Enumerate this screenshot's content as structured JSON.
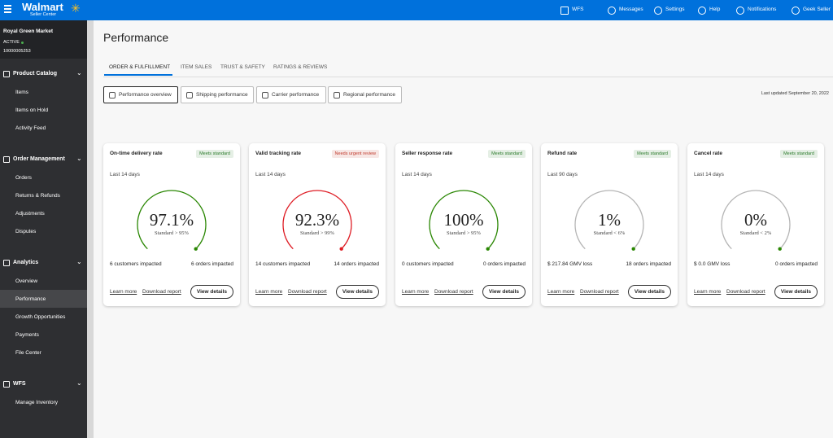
{
  "topbar": {
    "brand": "Walmart",
    "sub": "Seller Center",
    "items": [
      "WFS",
      "Messages",
      "Settings",
      "Help",
      "Notifications",
      "Geek Seller"
    ]
  },
  "sidebar": {
    "store": "Royal Green Market",
    "status": "ACTIVE",
    "id": "10000005253",
    "sections": [
      {
        "title": "Product Catalog",
        "items": [
          "Items",
          "Items on Hold",
          "Activity Feed"
        ]
      },
      {
        "title": "Order Management",
        "items": [
          "Orders",
          "Returns & Refunds",
          "Adjustments",
          "Disputes"
        ]
      },
      {
        "title": "Analytics",
        "items": [
          "Overview",
          "Performance",
          "Growth Opportunities",
          "Payments",
          "File Center"
        ]
      },
      {
        "title": "WFS",
        "items": [
          "Manage Inventory"
        ]
      }
    ]
  },
  "page": {
    "title": "Performance",
    "tabs": [
      "ORDER & FULFILLMENT",
      "ITEM SALES",
      "TRUST & SAFETY",
      "RATINGS & REVIEWS"
    ],
    "subtabs": [
      "Performance overview",
      "Shipping performance",
      "Carrier performance",
      "Regional performance"
    ],
    "updated": "Last updated September 20, 2022"
  },
  "card_actions": [
    "Learn more",
    "Download report",
    "View details"
  ],
  "cards": [
    {
      "title": "On-time delivery rate",
      "status": "Meets standard",
      "status_color": "#2a7a2a",
      "arc_color": "#2a8703",
      "period": "Last 14 days",
      "value": "97.1%",
      "standard": "Standard > 95%",
      "left": "6 customers impacted",
      "right": "6 orders impacted"
    },
    {
      "title": "Valid tracking rate",
      "status": "Needs urgent review",
      "status_color": "#c0392b",
      "arc_color": "#de1c24",
      "period": "Last 14 days",
      "value": "92.3%",
      "standard": "Standard > 99%",
      "left": "14 customers impacted",
      "right": "14 orders impacted"
    },
    {
      "title": "Seller response rate",
      "status": "Meets standard",
      "status_color": "#2a7a2a",
      "arc_color": "#2a8703",
      "period": "Last 14 days",
      "value": "100%",
      "standard": "Standard > 95%",
      "left": "0 customers impacted",
      "right": "0 orders impacted"
    },
    {
      "title": "Refund rate",
      "status": "Meets standard",
      "status_color": "#2a7a2a",
      "arc_color": "#b5b5b5",
      "period": "Last 90 days",
      "value": "1%",
      "standard": "Standard < 6%",
      "left": "$ 217.84 GMV loss",
      "right": "18 orders impacted"
    },
    {
      "title": "Cancel rate",
      "status": "Meets standard",
      "status_color": "#2a7a2a",
      "arc_color": "#b5b5b5",
      "period": "Last 14 days",
      "value": "0%",
      "standard": "Standard < 2%",
      "left": "$ 0.0 GMV loss",
      "right": "0 orders impacted"
    }
  ]
}
